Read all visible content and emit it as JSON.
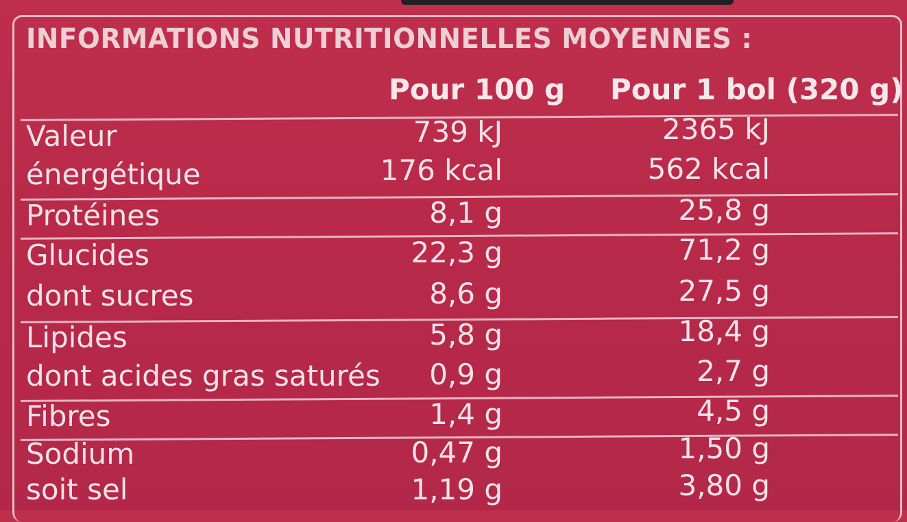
{
  "title": "INFORMATIONS NUTRITIONNELLES MOYENNES :",
  "columns": {
    "per100": "Pour 100 g",
    "perBowl": "Pour 1 bol (320 g)"
  },
  "rows": [
    {
      "label": "Valeur",
      "v1": "739 kJ",
      "v2": "2365 kJ"
    },
    {
      "label": "énergétique",
      "v1": "176 kcal",
      "v2": "562 kcal"
    },
    {
      "label": "Protéines",
      "v1": "8,1 g",
      "v2": "25,8 g"
    },
    {
      "label": "Glucides",
      "v1": "22,3 g",
      "v2": "71,2 g"
    },
    {
      "label": "dont sucres",
      "v1": "8,6 g",
      "v2": "27,5 g"
    },
    {
      "label": "Lipides",
      "v1": "5,8 g",
      "v2": "18,4 g"
    },
    {
      "label": "dont acides gras saturés",
      "v1": "0,9 g",
      "v2": "2,7 g"
    },
    {
      "label": "Fibres",
      "v1": "1,4 g",
      "v2": "4,5 g"
    },
    {
      "label": "Sodium",
      "v1": "0,47 g",
      "v2": "1,50 g"
    },
    {
      "label": "soit sel",
      "v1": "1,19 g",
      "v2": "3,80 g"
    }
  ],
  "colors": {
    "background": "#b8294a",
    "text": "#f3e3e7",
    "rule": "#e6b6c1"
  }
}
